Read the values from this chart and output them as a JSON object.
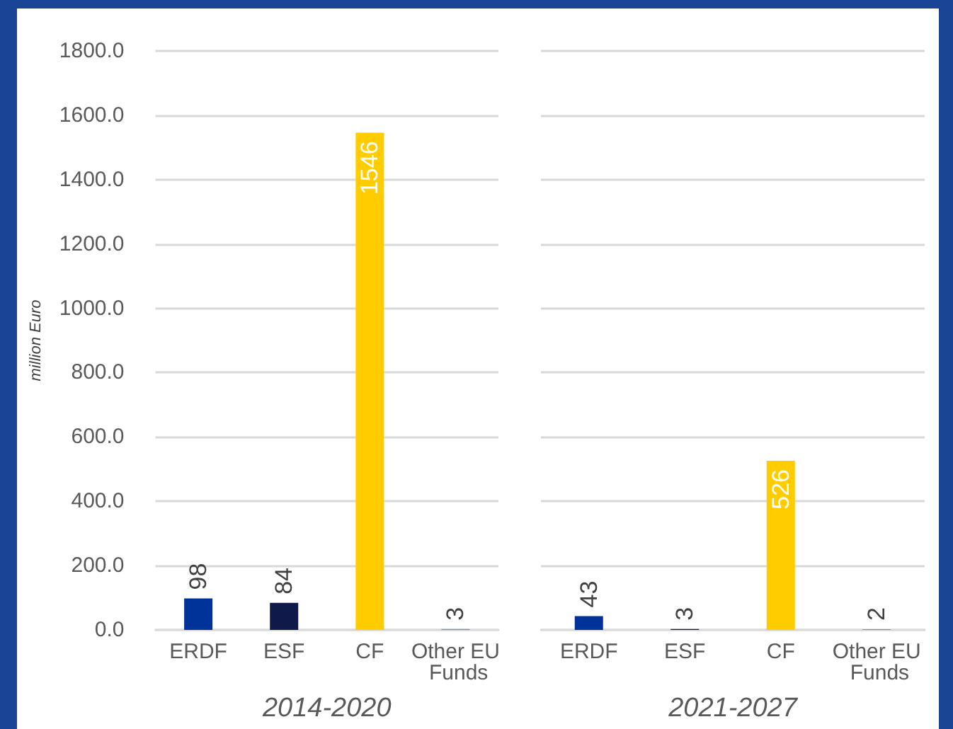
{
  "chart_data": [
    {
      "type": "bar",
      "xlabel": "2014-2020",
      "ylabel": "million Euro",
      "categories": [
        "ERDF",
        "ESF",
        "CF",
        "Other EU Funds"
      ],
      "values": [
        98,
        84,
        1546,
        3
      ],
      "colors": [
        "#003399",
        "#101a4a",
        "#ffcc00",
        "#6f8fcf"
      ],
      "ylim": [
        0,
        1800
      ],
      "yticks": [
        {
          "value": 0,
          "label": "0.0"
        },
        {
          "value": 200,
          "label": "200.0"
        },
        {
          "value": 400,
          "label": "400.0"
        },
        {
          "value": 600,
          "label": "600.0"
        },
        {
          "value": 800,
          "label": "800.0"
        },
        {
          "value": 1000,
          "label": "1000.0"
        },
        {
          "value": 1200,
          "label": "1200.0"
        },
        {
          "value": 1400,
          "label": "1400.0"
        },
        {
          "value": 1600,
          "label": "1600.0"
        },
        {
          "value": 1800,
          "label": "1800.0"
        }
      ],
      "grid": "y",
      "data_labels": true
    },
    {
      "type": "bar",
      "xlabel": "2021-2027",
      "categories": [
        "ERDF",
        "ESF",
        "CF",
        "Other EU Funds"
      ],
      "values": [
        43,
        3,
        526,
        2
      ],
      "colors": [
        "#003399",
        "#101a4a",
        "#ffcc00",
        "#6f8fcf"
      ],
      "ylim": [
        0,
        1800
      ],
      "yticks": [
        {
          "value": 0,
          "label": null
        },
        {
          "value": 200,
          "label": null
        },
        {
          "value": 400,
          "label": null
        },
        {
          "value": 600,
          "label": null
        },
        {
          "value": 800,
          "label": null
        },
        {
          "value": 1000,
          "label": null
        },
        {
          "value": 1200,
          "label": null
        },
        {
          "value": 1400,
          "label": null
        },
        {
          "value": 1600,
          "label": null
        },
        {
          "value": 1800,
          "label": null
        }
      ],
      "grid": "y",
      "data_labels": true,
      "tick_labels": "x"
    }
  ]
}
